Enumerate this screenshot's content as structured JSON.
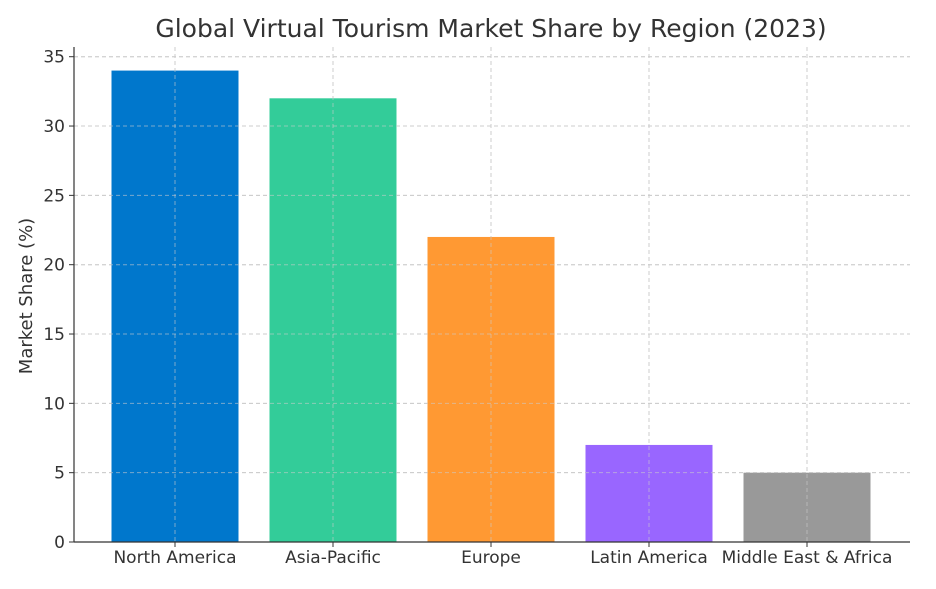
{
  "chart_data": {
    "type": "bar",
    "title": "Global Virtual Tourism Market Share by Region (2023)",
    "xlabel": "",
    "ylabel": "Market Share (%)",
    "categories": [
      "North America",
      "Asia-Pacific",
      "Europe",
      "Latin America",
      "Middle East & Africa"
    ],
    "values": [
      34,
      32,
      22,
      7,
      5
    ],
    "colors": [
      "#0077CC",
      "#33CC99",
      "#FF9933",
      "#9966FF",
      "#999999"
    ],
    "ylim": [
      0,
      35.7
    ],
    "yticks": [
      0,
      5,
      10,
      15,
      20,
      25,
      30,
      35
    ],
    "grid": true,
    "legend": "none"
  }
}
